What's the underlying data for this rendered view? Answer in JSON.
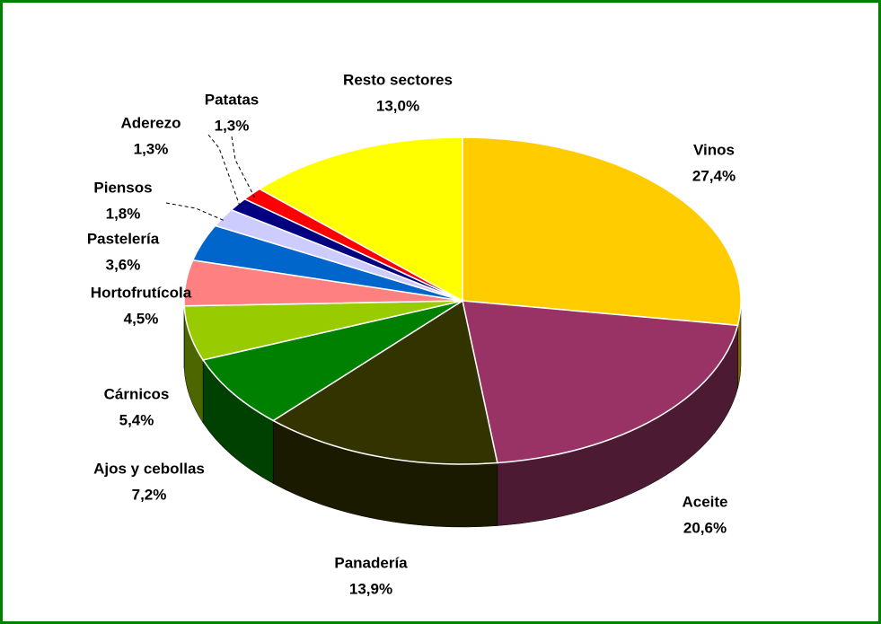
{
  "chart_data": {
    "type": "pie",
    "categories": [
      "Vinos",
      "Aceite",
      "Panadería",
      "Ajos y cebollas",
      "Cárnicos",
      "Hortofrutícola",
      "Pastelería",
      "Piensos",
      "Aderezo",
      "Patatas",
      "Resto sectores"
    ],
    "values": [
      27.4,
      20.6,
      13.9,
      7.2,
      5.4,
      4.5,
      3.6,
      1.8,
      1.3,
      1.3,
      13.0
    ],
    "value_labels": [
      "27,4%",
      "20,6%",
      "13,9%",
      "7,2%",
      "5,4%",
      "4,5%",
      "3,6%",
      "1,8%",
      "1,3%",
      "1,3%",
      "13,0%"
    ],
    "colors": [
      "#ffcc00",
      "#993366",
      "#333300",
      "#008000",
      "#99cc00",
      "#ff8080",
      "#0066cc",
      "#ccccff",
      "#000080",
      "#ff0000",
      "#ffff00"
    ]
  }
}
